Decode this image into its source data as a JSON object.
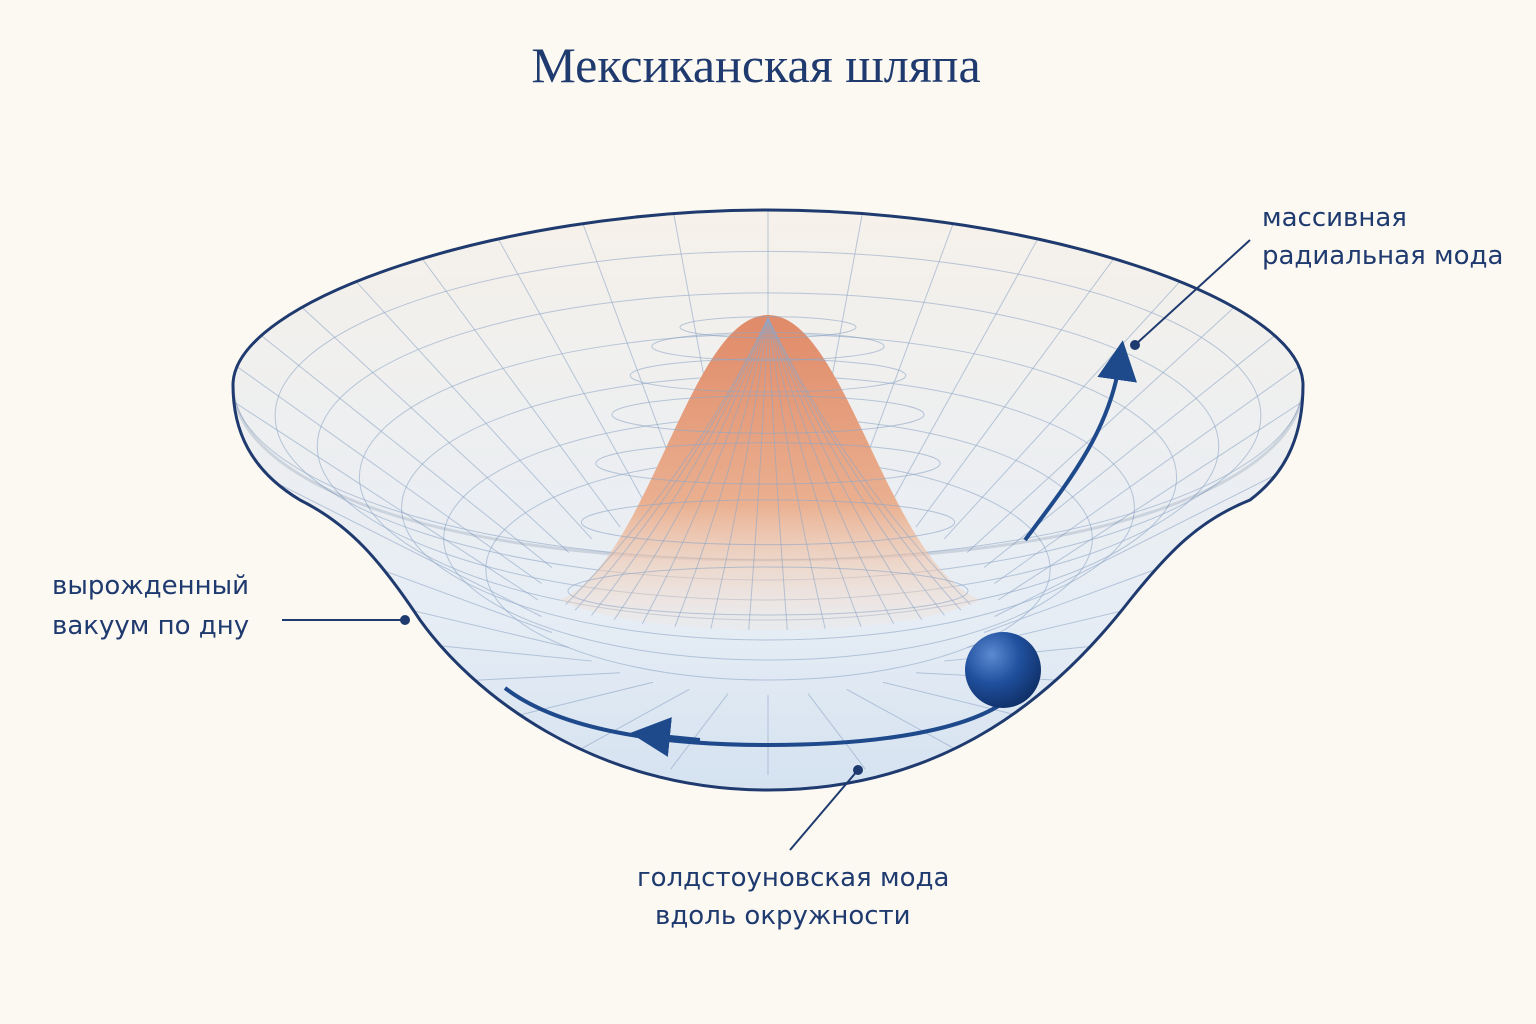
{
  "title": "Мексиканская шляпа",
  "annotations": [
    {
      "lines": [
        "массивная",
        "радиальная мода"
      ]
    },
    {
      "lines": [
        "вырожденный",
        "вакуум по дну"
      ]
    },
    {
      "lines": [
        "голдстоуновская мода",
        "вдоль окружности"
      ]
    }
  ]
}
